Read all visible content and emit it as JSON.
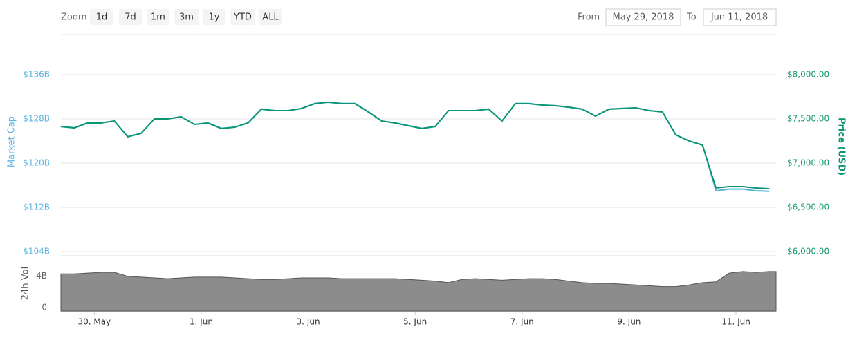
{
  "toolbar": {
    "zoom_label": "Zoom",
    "buttons": [
      "1d",
      "7d",
      "1m",
      "3m",
      "1y",
      "YTD",
      "ALL"
    ],
    "from_label": "From",
    "from": "May 29, 2018",
    "to_label": "To",
    "to": "Jun 11, 2018"
  },
  "chart_data": [
    {
      "type": "line",
      "x": [
        "2018-05-29T09:00",
        "2018-05-29T15:00",
        "2018-05-29T21:00",
        "2018-05-30T03:00",
        "2018-05-30T09:00",
        "2018-05-30T15:00",
        "2018-05-30T21:00",
        "2018-05-31T03:00",
        "2018-05-31T09:00",
        "2018-05-31T15:00",
        "2018-05-31T21:00",
        "2018-06-01T03:00",
        "2018-06-01T09:00",
        "2018-06-01T15:00",
        "2018-06-01T21:00",
        "2018-06-02T03:00",
        "2018-06-02T09:00",
        "2018-06-02T15:00",
        "2018-06-02T21:00",
        "2018-06-03T03:00",
        "2018-06-03T09:00",
        "2018-06-03T15:00",
        "2018-06-03T21:00",
        "2018-06-04T03:00",
        "2018-06-04T09:00",
        "2018-06-04T15:00",
        "2018-06-04T21:00",
        "2018-06-05T03:00",
        "2018-06-05T09:00",
        "2018-06-05T15:00",
        "2018-06-05T21:00",
        "2018-06-06T03:00",
        "2018-06-06T09:00",
        "2018-06-06T15:00",
        "2018-06-06T21:00",
        "2018-06-07T03:00",
        "2018-06-07T09:00",
        "2018-06-07T15:00",
        "2018-06-07T21:00",
        "2018-06-08T03:00",
        "2018-06-08T09:00",
        "2018-06-08T15:00",
        "2018-06-08T21:00",
        "2018-06-09T03:00",
        "2018-06-09T09:00",
        "2018-06-09T15:00",
        "2018-06-09T21:00",
        "2018-06-10T03:00",
        "2018-06-10T09:00",
        "2018-06-10T15:00",
        "2018-06-10T21:00",
        "2018-06-11T03:00",
        "2018-06-11T09:00",
        "2018-06-11T15:00"
      ],
      "xlim": [
        "2018-05-29T09:00",
        "2018-06-11T18:00"
      ],
      "xticks": [
        {
          "value": "2018-05-30T00:00",
          "label": "30. May"
        },
        {
          "value": "2018-06-01T00:00",
          "label": "1. Jun"
        },
        {
          "value": "2018-06-03T00:00",
          "label": "3. Jun"
        },
        {
          "value": "2018-06-05T00:00",
          "label": "5. Jun"
        },
        {
          "value": "2018-06-07T00:00",
          "label": "7. Jun"
        },
        {
          "value": "2018-06-09T00:00",
          "label": "9. Jun"
        },
        {
          "value": "2018-06-11T00:00",
          "label": "11. Jun"
        }
      ],
      "ylim": [
        104000000000,
        136000000000
      ],
      "yticks": [
        {
          "value": 104000000000,
          "label": "$104B"
        },
        {
          "value": 112000000000,
          "label": "$112B"
        },
        {
          "value": 120000000000,
          "label": "$120B"
        },
        {
          "value": 128000000000,
          "label": "$128B"
        },
        {
          "value": 136000000000,
          "label": "$136B"
        }
      ],
      "y2lim": [
        6000,
        8000
      ],
      "y2ticks": [
        {
          "value": 6000,
          "label": "$6,000.00"
        },
        {
          "value": 6500,
          "label": "$6,500.00"
        },
        {
          "value": 7000,
          "label": "$7,000.00"
        },
        {
          "value": 7500,
          "label": "$7,500.00"
        },
        {
          "value": 8000,
          "label": "$8,000.00"
        }
      ],
      "grid": true,
      "series": [
        {
          "name": "Market Cap",
          "color": "#5ab4e0",
          "values": [
            126600000000,
            126400000000,
            127300000000,
            127300000000,
            127600000000,
            124800000000,
            125400000000,
            128000000000,
            128000000000,
            128400000000,
            127000000000,
            127300000000,
            126300000000,
            126500000000,
            127300000000,
            129800000000,
            129500000000,
            129500000000,
            129900000000,
            130800000000,
            131000000000,
            130800000000,
            130800000000,
            129300000000,
            127600000000,
            127300000000,
            126800000000,
            126300000000,
            126600000000,
            129500000000,
            129500000000,
            129500000000,
            129800000000,
            127600000000,
            130800000000,
            130800000000,
            130500000000,
            130400000000,
            130100000000,
            129800000000,
            128500000000,
            129800000000,
            129900000000,
            130000000000,
            129500000000,
            129300000000,
            125100000000,
            124000000000,
            123300000000,
            115000000000,
            115300000000,
            115300000000,
            115000000000,
            114900000000
          ]
        },
        {
          "name": "Price (USD)",
          "color": "#0a9574",
          "axis": "y2",
          "values": [
            7414,
            7398,
            7453,
            7453,
            7477,
            7297,
            7336,
            7500,
            7500,
            7523,
            7438,
            7453,
            7391,
            7406,
            7453,
            7609,
            7594,
            7594,
            7617,
            7672,
            7688,
            7672,
            7672,
            7578,
            7477,
            7453,
            7422,
            7391,
            7414,
            7594,
            7594,
            7594,
            7609,
            7477,
            7672,
            7672,
            7656,
            7648,
            7633,
            7609,
            7531,
            7609,
            7617,
            7625,
            7594,
            7578,
            7320,
            7250,
            7203,
            6719,
            6734,
            6734,
            6719,
            6711
          ]
        }
      ]
    },
    {
      "type": "area",
      "ylabel": "24h Vol",
      "ylim": [
        0,
        7000000000
      ],
      "yticks": [
        0,
        {
          "value": 4000000000,
          "label": "4B"
        }
      ],
      "color": "#8c8c8c",
      "values": [
        4700000000,
        4700000000,
        4800000000,
        4900000000,
        4900000000,
        4400000000,
        4300000000,
        4200000000,
        4100000000,
        4200000000,
        4300000000,
        4300000000,
        4300000000,
        4200000000,
        4100000000,
        4000000000,
        4000000000,
        4100000000,
        4200000000,
        4200000000,
        4200000000,
        4100000000,
        4100000000,
        4100000000,
        4100000000,
        4100000000,
        4000000000,
        3900000000,
        3800000000,
        3600000000,
        4000000000,
        4100000000,
        4000000000,
        3900000000,
        4000000000,
        4100000000,
        4100000000,
        4000000000,
        3800000000,
        3600000000,
        3500000000,
        3500000000,
        3400000000,
        3300000000,
        3200000000,
        3100000000,
        3100000000,
        3300000000,
        3600000000,
        3700000000,
        4800000000,
        5000000000,
        4900000000,
        5000000000
      ]
    }
  ]
}
